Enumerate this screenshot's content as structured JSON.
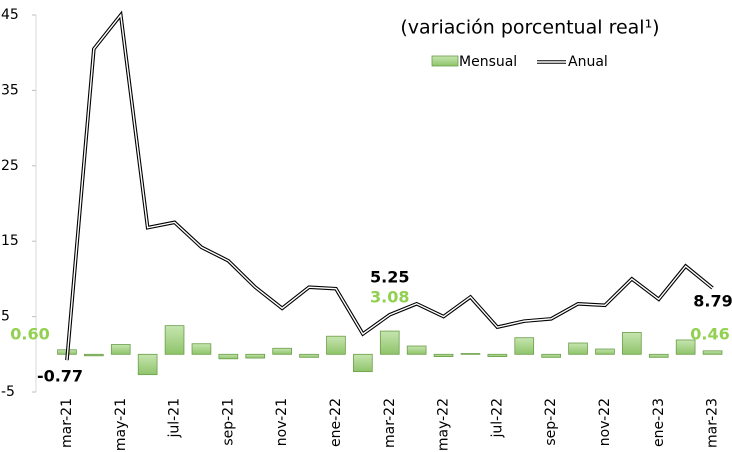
{
  "chart_data": {
    "type": "bar_line",
    "title": "(variación porcentual real¹)",
    "categories": [
      "mar-21",
      null,
      "may-21",
      null,
      "jul-21",
      null,
      "sep-21",
      null,
      "nov-21",
      null,
      "ene-22",
      null,
      "mar-22",
      null,
      "may-22",
      null,
      "jul-22",
      null,
      "sep-22",
      null,
      "nov-22",
      null,
      "ene-23",
      null,
      "mar-23"
    ],
    "series": [
      {
        "name": "Mensual",
        "type": "bar",
        "color": "#a9d18e",
        "label_color": "#92d050",
        "values": [
          0.6,
          -0.2,
          1.3,
          -2.7,
          3.8,
          1.4,
          -0.6,
          -0.5,
          0.8,
          -0.4,
          2.4,
          -2.3,
          3.08,
          1.1,
          -0.3,
          0.1,
          -0.3,
          2.2,
          -0.4,
          1.5,
          0.7,
          2.9,
          -0.4,
          1.9,
          0.46
        ],
        "value_labels": [
          "0.60",
          null,
          null,
          null,
          null,
          null,
          null,
          null,
          null,
          null,
          null,
          null,
          "3.08",
          null,
          null,
          null,
          null,
          null,
          null,
          null,
          null,
          null,
          null,
          null,
          "0.46"
        ]
      },
      {
        "name": "Anual",
        "type": "line",
        "color": "#000000",
        "label_color": "#000000",
        "values": [
          -0.77,
          40.5,
          45,
          16.8,
          17.5,
          14.2,
          12.4,
          8.9,
          6.1,
          8.9,
          8.7,
          2.7,
          5.25,
          6.7,
          5.0,
          7.6,
          3.6,
          4.4,
          4.7,
          6.7,
          6.5,
          10.0,
          7.3,
          11.7,
          8.79
        ],
        "value_labels": [
          "-0.77",
          null,
          null,
          null,
          null,
          null,
          null,
          null,
          null,
          null,
          null,
          null,
          "5.25",
          null,
          null,
          null,
          null,
          null,
          null,
          null,
          null,
          null,
          null,
          null,
          "8.79"
        ]
      }
    ],
    "ylim": [
      -5,
      45
    ],
    "yticks": [
      -5,
      5,
      15,
      25,
      35,
      45
    ]
  }
}
